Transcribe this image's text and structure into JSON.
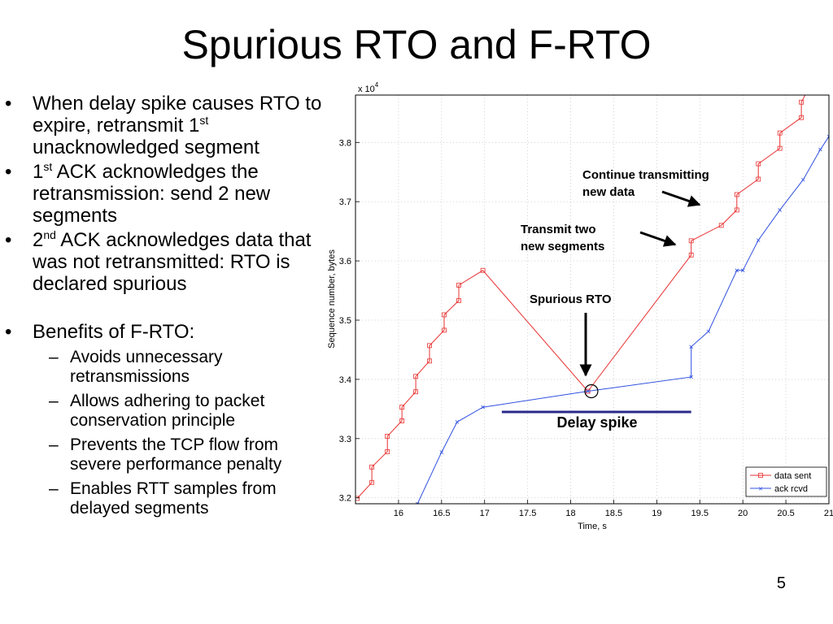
{
  "slide": {
    "title": "Spurious RTO and F-RTO",
    "page_number": "5",
    "bullets": [
      {
        "pre": "When delay spike causes RTO to expire, retransmit 1",
        "sup": "st",
        "post": " unacknowledged segment"
      },
      {
        "pre": "1",
        "sup": "st",
        "post": " ACK acknowledges the retransmission: send 2 new segments"
      },
      {
        "pre": "2",
        "sup": "nd",
        "post": " ACK acknowledges data that was not retransmitted: RTO is declared spurious"
      },
      {
        "pre": "Benefits of F-RTO:",
        "sup": "",
        "post": ""
      }
    ],
    "sub_bullets": [
      "Avoids unnecessary retransmissions",
      "Allows adhering to packet conservation principle",
      "Prevents the TCP flow from severe performance penalty",
      "Enables RTT samples from delayed segments"
    ]
  },
  "chart_data": {
    "type": "line",
    "xlabel": "Time, s",
    "ylabel": "Sequence number, bytes",
    "y_multiplier_label": "x 10",
    "y_multiplier_exp": "4",
    "xlim": [
      15.5,
      21
    ],
    "ylim": [
      3.19,
      3.88
    ],
    "xticks": [
      16,
      16.5,
      17,
      17.5,
      18,
      18.5,
      19,
      19.5,
      20,
      20.5,
      21
    ],
    "xtick_labels": [
      "16",
      "16.5",
      "17",
      "17.5",
      "18",
      "18.5",
      "19",
      "19.5",
      "20",
      "20.5",
      "21"
    ],
    "yticks": [
      3.2,
      3.3,
      3.4,
      3.5,
      3.6,
      3.7,
      3.8
    ],
    "ytick_labels": [
      "3.2",
      "3.3",
      "3.4",
      "3.5",
      "3.6",
      "3.7",
      "3.8"
    ],
    "grid": true,
    "legend_position": "bottom-right",
    "series": [
      {
        "name": "data sent",
        "color": "#e83030",
        "marker": "square",
        "points": [
          [
            15.52,
            3.199
          ],
          [
            15.69,
            3.226
          ],
          [
            15.69,
            3.252
          ],
          [
            15.87,
            3.278
          ],
          [
            15.87,
            3.304
          ],
          [
            16.04,
            3.33
          ],
          [
            16.04,
            3.353
          ],
          [
            16.2,
            3.379
          ],
          [
            16.2,
            3.405
          ],
          [
            16.36,
            3.431
          ],
          [
            16.36,
            3.457
          ],
          [
            16.53,
            3.483
          ],
          [
            16.53,
            3.509
          ],
          [
            16.7,
            3.533
          ],
          [
            16.7,
            3.559
          ],
          [
            16.98,
            3.584
          ],
          [
            18.2,
            3.38
          ],
          [
            19.4,
            3.61
          ],
          [
            19.4,
            3.634
          ],
          [
            19.75,
            3.66
          ],
          [
            19.93,
            3.686
          ],
          [
            19.93,
            3.712
          ],
          [
            20.18,
            3.738
          ],
          [
            20.18,
            3.764
          ],
          [
            20.43,
            3.79
          ],
          [
            20.43,
            3.816
          ],
          [
            20.68,
            3.842
          ],
          [
            20.68,
            3.868
          ],
          [
            20.76,
            3.89
          ]
        ]
      },
      {
        "name": "ack rcvd",
        "color": "#3050e0",
        "marker": "x",
        "points": [
          [
            16.22,
            3.19
          ],
          [
            16.5,
            3.277
          ],
          [
            16.68,
            3.328
          ],
          [
            16.98,
            3.353
          ],
          [
            18.2,
            3.38
          ],
          [
            19.4,
            3.404
          ],
          [
            19.4,
            3.455
          ],
          [
            19.6,
            3.481
          ],
          [
            19.93,
            3.584
          ],
          [
            20.0,
            3.584
          ],
          [
            20.18,
            3.635
          ],
          [
            20.43,
            3.686
          ],
          [
            20.7,
            3.737
          ],
          [
            20.9,
            3.788
          ],
          [
            21.0,
            3.81
          ]
        ]
      }
    ],
    "annotations": [
      {
        "text_lines": [
          "Continue transmitting",
          "new data"
        ]
      },
      {
        "text_lines": [
          "Transmit two",
          "new segments"
        ]
      },
      {
        "text_lines": [
          "Spurious RTO"
        ]
      },
      {
        "text_lines": [
          "Delay spike"
        ]
      }
    ],
    "delay_spike_range": [
      17.2,
      19.4
    ],
    "circle_at": [
      18.24,
      3.38
    ]
  }
}
